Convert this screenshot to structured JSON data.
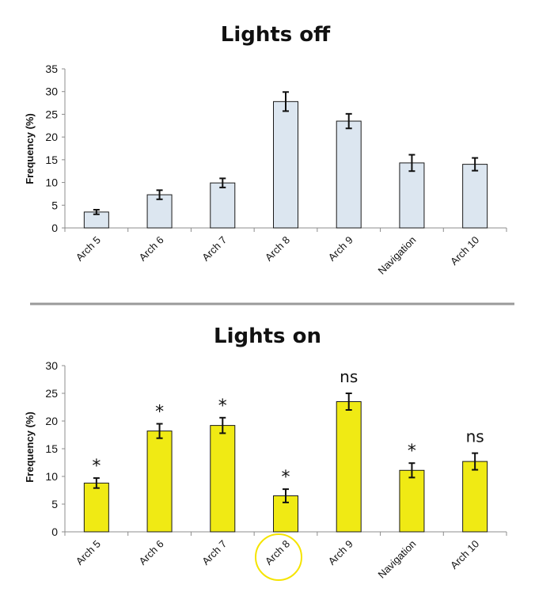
{
  "chart_data": [
    {
      "type": "bar",
      "title": "Lights off",
      "ylabel": "Frequency (%)",
      "xlabel": "",
      "ylim": [
        0,
        35
      ],
      "yticks": [
        0,
        5,
        10,
        15,
        20,
        25,
        30,
        35
      ],
      "categories": [
        "Arch 5",
        "Arch 6",
        "Arch 7",
        "Arch 8",
        "Arch 9",
        "Navigation",
        "Arch 10"
      ],
      "values": [
        3.5,
        7.3,
        9.9,
        27.8,
        23.5,
        14.3,
        14
      ],
      "errors": [
        0.5,
        1.0,
        1.0,
        2.1,
        1.6,
        1.8,
        1.4
      ],
      "bar_color": "#dce6f0",
      "annotations": [
        "",
        "",
        "",
        "",
        "",
        "",
        ""
      ],
      "grid": false
    },
    {
      "type": "bar",
      "title": "Lights on",
      "ylabel": "Frequency (%)",
      "xlabel": "",
      "ylim": [
        0,
        30
      ],
      "yticks": [
        0,
        5,
        10,
        15,
        20,
        25,
        30
      ],
      "categories": [
        "Arch 5",
        "Arch 6",
        "Arch 7",
        "Arch 8",
        "Arch 9",
        "Navigation",
        "Arch 10"
      ],
      "values": [
        8.8,
        18.2,
        19.2,
        6.5,
        23.5,
        11.1,
        12.7
      ],
      "errors": [
        0.9,
        1.3,
        1.4,
        1.2,
        1.5,
        1.3,
        1.5
      ],
      "bar_color": "#f0ea14",
      "annotations": [
        "*",
        "*",
        "*",
        "*",
        "ns",
        "*",
        "ns"
      ],
      "highlight_category": "Arch 8",
      "highlight_color": "#f5e400",
      "grid": false
    }
  ]
}
